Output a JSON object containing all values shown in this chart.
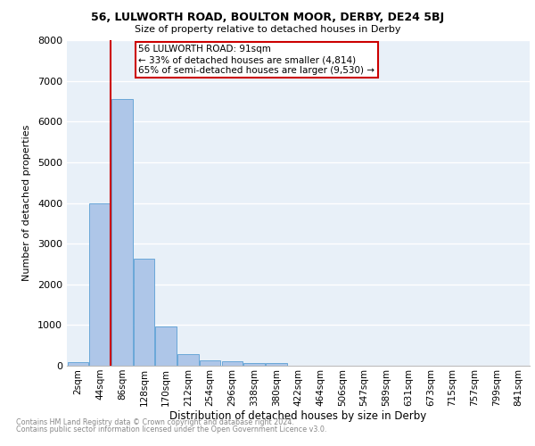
{
  "title": "56, LULWORTH ROAD, BOULTON MOOR, DERBY, DE24 5BJ",
  "subtitle": "Size of property relative to detached houses in Derby",
  "xlabel": "Distribution of detached houses by size in Derby",
  "ylabel": "Number of detached properties",
  "footnote1": "Contains HM Land Registry data © Crown copyright and database right 2024.",
  "footnote2": "Contains public sector information licensed under the Open Government Licence v3.0.",
  "bar_labels": [
    "2sqm",
    "44sqm",
    "86sqm",
    "128sqm",
    "170sqm",
    "212sqm",
    "254sqm",
    "296sqm",
    "338sqm",
    "380sqm",
    "422sqm",
    "464sqm",
    "506sqm",
    "547sqm",
    "589sqm",
    "631sqm",
    "673sqm",
    "715sqm",
    "757sqm",
    "799sqm",
    "841sqm"
  ],
  "bar_values": [
    80,
    3980,
    6550,
    2620,
    960,
    290,
    130,
    120,
    70,
    60,
    0,
    0,
    0,
    0,
    0,
    0,
    0,
    0,
    0,
    0,
    0
  ],
  "bar_color": "#aec6e8",
  "bar_edge_color": "#5a9fd4",
  "ylim": [
    0,
    8000
  ],
  "yticks": [
    0,
    1000,
    2000,
    3000,
    4000,
    5000,
    6000,
    7000,
    8000
  ],
  "property_label": "56 LULWORTH ROAD: 91sqm",
  "annotation_line1": "← 33% of detached houses are smaller (4,814)",
  "annotation_line2": "65% of semi-detached houses are larger (9,530) →",
  "vline_x_index": 1.5,
  "box_color": "#cc0000",
  "background_color": "#e8f0f8",
  "grid_color": "#ffffff"
}
